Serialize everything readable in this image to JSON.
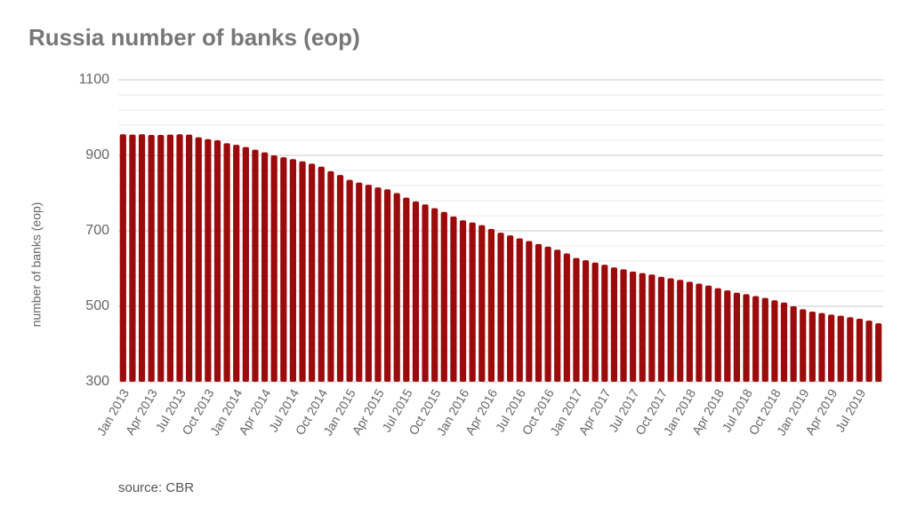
{
  "chart_data": {
    "type": "bar",
    "title": "Russia number of banks (eop)",
    "y_label": "number of banks (eop)",
    "source": "source: CBR",
    "categories": [
      "Jan 2013",
      null,
      null,
      "Apr 2013",
      null,
      null,
      "Jul 2013",
      null,
      null,
      "Oct 2013",
      null,
      null,
      "Jan 2014",
      null,
      null,
      "Apr 2014",
      null,
      null,
      "Jul 2014",
      null,
      null,
      "Oct 2014",
      null,
      null,
      "Jan 2015",
      null,
      null,
      "Apr 2015",
      null,
      null,
      "Jul 2015",
      null,
      null,
      "Oct 2015",
      null,
      null,
      "Jan 2016",
      null,
      null,
      "Apr 2016",
      null,
      null,
      "Jul 2016",
      null,
      null,
      "Oct 2016",
      null,
      null,
      "Jan 2017",
      null,
      null,
      "Apr 2017",
      null,
      null,
      "Jul 2017",
      null,
      null,
      "Oct 2017",
      null,
      null,
      "Jan 2018",
      null,
      null,
      "Apr 2018",
      null,
      null,
      "Jul 2018",
      null,
      null,
      "Oct 2018",
      null,
      null,
      "Jan 2019",
      null,
      null,
      "Apr 2019",
      null,
      null,
      "Jul 2019",
      null,
      null
    ],
    "values": [
      956,
      955,
      956,
      954,
      954,
      955,
      956,
      955,
      948,
      943,
      940,
      932,
      928,
      922,
      915,
      908,
      900,
      895,
      890,
      884,
      878,
      870,
      858,
      848,
      835,
      828,
      822,
      815,
      810,
      800,
      788,
      778,
      770,
      760,
      750,
      738,
      728,
      722,
      715,
      705,
      695,
      688,
      680,
      673,
      665,
      658,
      650,
      640,
      628,
      622,
      616,
      610,
      603,
      598,
      592,
      588,
      584,
      578,
      574,
      570,
      565,
      560,
      555,
      548,
      542,
      536,
      532,
      527,
      522,
      516,
      510,
      500,
      492,
      486,
      482,
      478,
      475,
      471,
      467,
      462,
      455
    ],
    "color": "#9c0b0b",
    "ylim": [
      300,
      1100
    ],
    "yticks": [
      300,
      500,
      700,
      900,
      1100
    ],
    "minor_yticks": [
      340,
      380,
      420,
      460,
      540,
      580,
      620,
      660,
      740,
      780,
      820,
      860,
      940,
      980,
      1020,
      1060
    ],
    "grid": true
  }
}
